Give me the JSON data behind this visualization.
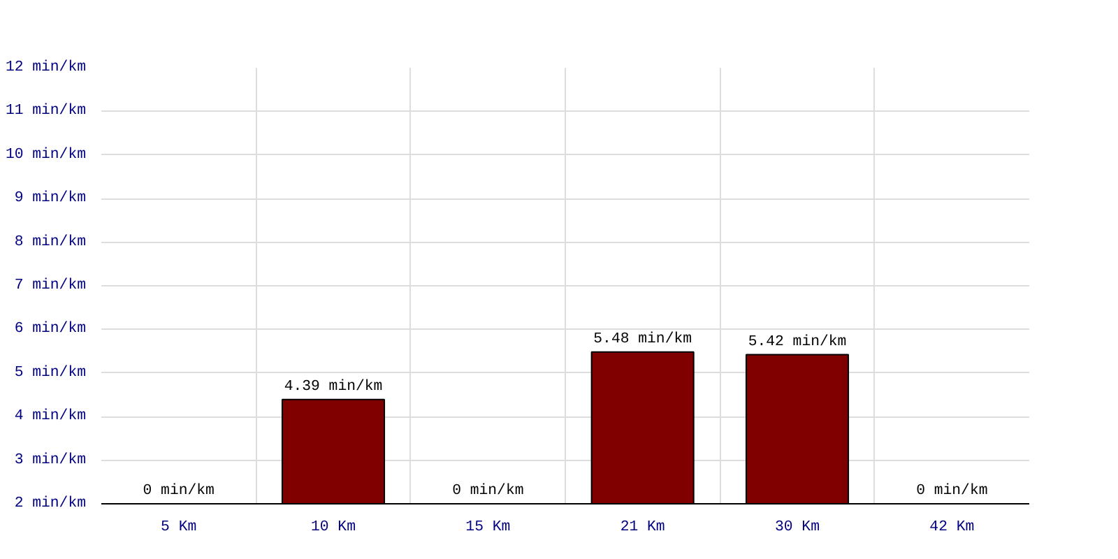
{
  "chart_data": {
    "type": "bar",
    "categories": [
      "5 Km",
      "10 Km",
      "15 Km",
      "21 Km",
      "30 Km",
      "42 Km"
    ],
    "values": [
      null,
      4.39,
      null,
      5.48,
      5.42,
      null
    ],
    "value_labels": [
      "0 min/km",
      "4.39 min/km",
      "0 min/km",
      "5.48 min/km",
      "5.42 min/km",
      "0 min/km"
    ],
    "color": "#800000",
    "ylim": [
      2,
      12
    ],
    "yticks": [
      {
        "value": 2,
        "label": "2 min/km"
      },
      {
        "value": 3,
        "label": "3 min/km"
      },
      {
        "value": 4,
        "label": "4 min/km"
      },
      {
        "value": 5,
        "label": "5 min/km"
      },
      {
        "value": 6,
        "label": "6 min/km"
      },
      {
        "value": 7,
        "label": "7 min/km"
      },
      {
        "value": 8,
        "label": "8 min/km"
      },
      {
        "value": 9,
        "label": "9 min/km"
      },
      {
        "value": 10,
        "label": "10 min/km"
      },
      {
        "value": 11,
        "label": "11 min/km"
      },
      {
        "value": 12,
        "label": "12 min/km"
      }
    ],
    "grid": true
  }
}
